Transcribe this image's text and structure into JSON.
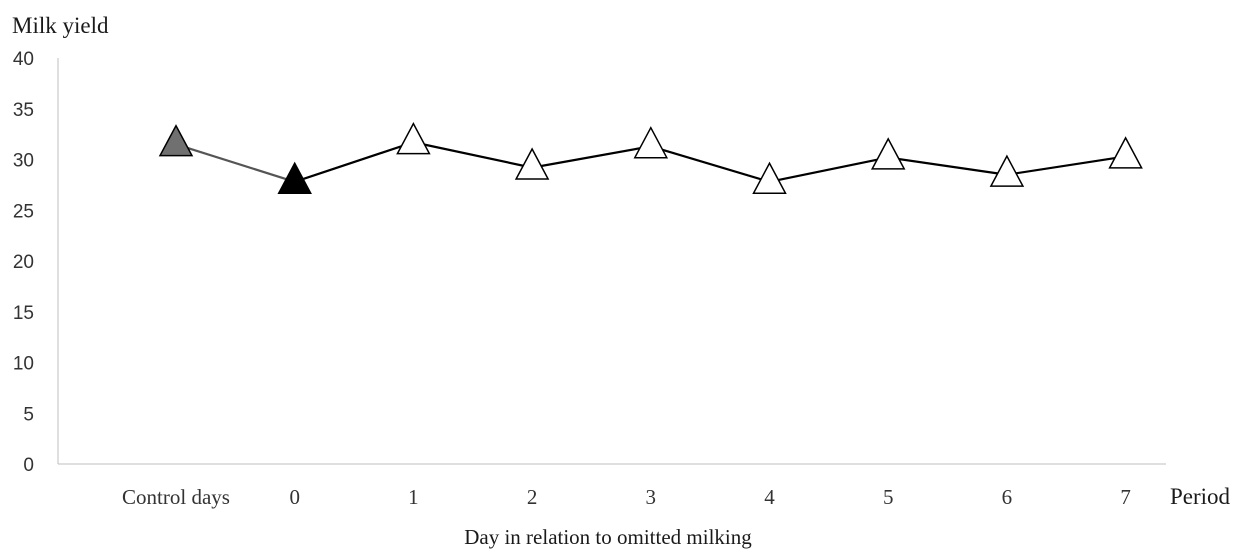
{
  "chart_data": {
    "type": "line",
    "title": "",
    "ylabel": "Milk yield",
    "xlabel": "Day in relation to omitted milking",
    "x_end_label": "Period",
    "categories": [
      "Control days",
      "0",
      "1",
      "2",
      "3",
      "4",
      "5",
      "6",
      "7"
    ],
    "ylim": [
      0,
      40
    ],
    "yticks": [
      0,
      5,
      10,
      15,
      20,
      25,
      30,
      35,
      40
    ],
    "grid": false,
    "series": [
      {
        "values": [
          31.5,
          27.8,
          31.7,
          29.2,
          31.3,
          27.8,
          30.2,
          28.5,
          30.3
        ],
        "marker": "triangle",
        "line_color": "#000000",
        "marker_fills": [
          "#707070",
          "#000000",
          "#ffffff",
          "#ffffff",
          "#ffffff",
          "#ffffff",
          "#ffffff",
          "#ffffff",
          "#ffffff"
        ]
      }
    ]
  }
}
